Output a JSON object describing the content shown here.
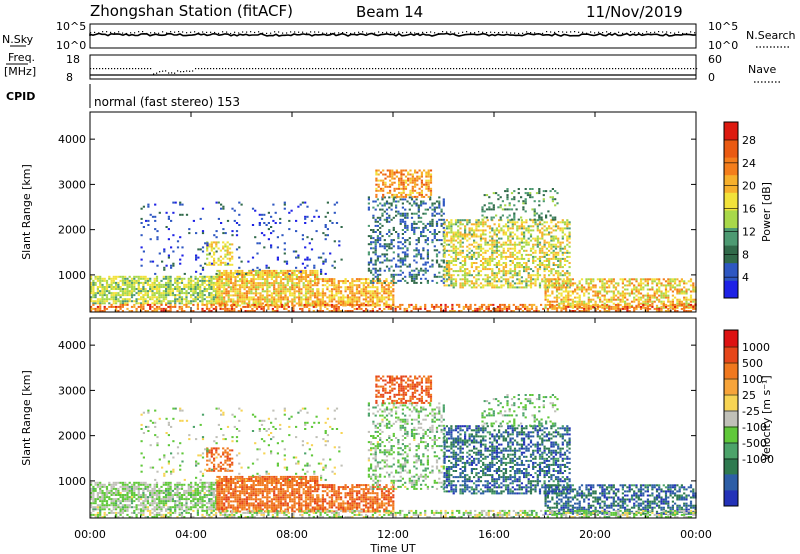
{
  "header": {
    "station": "Zhongshan Station (fitACF)",
    "beam": "Beam 14",
    "date": "11/Nov/2019"
  },
  "top_panels": {
    "nsky_label": "N.Sky",
    "nsky_ticks": [
      "10^5",
      "10^0"
    ],
    "nsearch_label": "N.Search",
    "nsearch_ticks": [
      "10^5",
      "10^0"
    ],
    "freq_label_line1": "Freq.",
    "freq_label_line2": "[MHz]",
    "freq_ticks": [
      "18",
      "8"
    ],
    "nave_label": "Nave",
    "nave_ticks": [
      "60",
      "0"
    ],
    "cpid_label": "CPID",
    "cpid_text": "normal (fast stereo) 153"
  },
  "chart_data": [
    {
      "type": "heatmap",
      "name": "power",
      "ylabel": "Slant Range [km]",
      "yticks": [
        "1000",
        "2000",
        "3000",
        "4000"
      ],
      "ylim": [
        180,
        4600
      ],
      "xticks": [
        "00:00",
        "04:00",
        "08:00",
        "12:00",
        "16:00",
        "20:00",
        "00:00"
      ],
      "xlim_hours": [
        0,
        24
      ],
      "colorbar_label": "Power [dB]",
      "colorbar_ticks": [
        "4",
        "8",
        "12",
        "16",
        "20",
        "24",
        "28"
      ],
      "colorbar_colors": [
        "#1e22e6",
        "#2e57c2",
        "#316a4a",
        "#4d9a72",
        "#a8d84a",
        "#f2e23a",
        "#f7b02c",
        "#f47e1c",
        "#ea5a12",
        "#dd1a10"
      ]
    },
    {
      "type": "heatmap",
      "name": "velocity",
      "ylabel": "Slant Range [km]",
      "yticks": [
        "1000",
        "2000",
        "3000",
        "4000"
      ],
      "ylim": [
        180,
        4600
      ],
      "xticks": [
        "00:00",
        "04:00",
        "08:00",
        "12:00",
        "16:00",
        "20:00",
        "00:00"
      ],
      "xlabel": "Time UT",
      "xlim_hours": [
        0,
        24
      ],
      "colorbar_label": "Velocity [m s⁻¹]",
      "colorbar_ticks": [
        "1000",
        "500",
        "100",
        "25",
        "-25",
        "-100",
        "-500",
        "-1000"
      ],
      "colorbar_colors": [
        "#2432b8",
        "#2d5ea6",
        "#2f7a50",
        "#4ca36a",
        "#60c83a",
        "#c0c0b8",
        "#f7d454",
        "#f7a43a",
        "#f0781e",
        "#e6461a",
        "#dd1212"
      ]
    }
  ]
}
